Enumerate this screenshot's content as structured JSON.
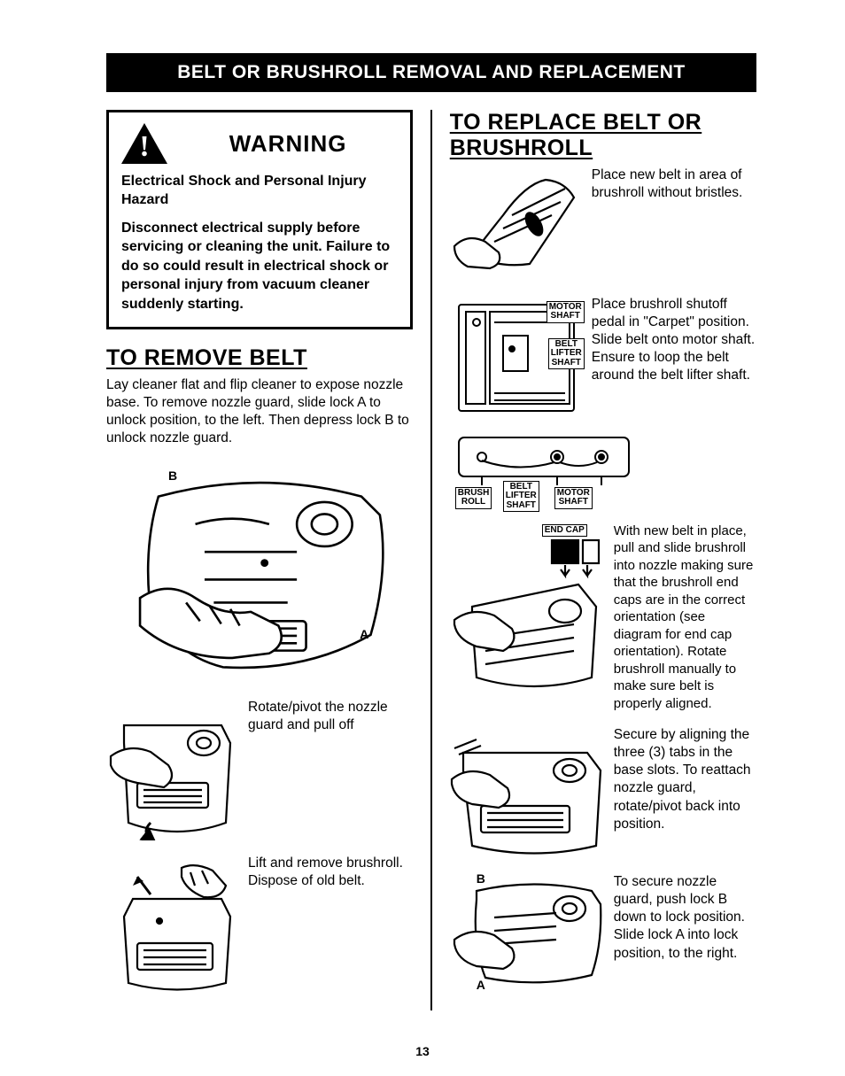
{
  "banner": "BELT OR BRUSHROLL REMOVAL AND REPLACEMENT",
  "warning": {
    "title": "WARNING",
    "subtitle": "Electrical Shock and Personal Injury Hazard",
    "body": "Disconnect electrical supply before servicing or cleaning the unit. Failure to do so could result in electrical shock or personal injury from vacuum cleaner suddenly starting."
  },
  "remove": {
    "title": "TO REMOVE BELT",
    "intro": "Lay cleaner flat and flip cleaner to expose nozzle base. To remove nozzle guard, slide lock A to unlock position, to the left. Then depress lock B to unlock nozzle guard.",
    "fig1_labels": {
      "B": "B",
      "A": "A"
    },
    "step2": "Rotate/pivot the nozzle guard and pull off",
    "step3": "Lift and remove brushroll. Dispose of old belt."
  },
  "replace": {
    "title": "TO REPLACE BELT OR BRUSHROLL",
    "step1": "Place new belt in area of brushroll without bristles.",
    "step2": "Place brushroll shutoff pedal in \"Carpet\" position. Slide belt onto motor shaft. Ensure to loop the belt around the belt lifter shaft.",
    "step2_labels": {
      "motor_shaft": "MOTOR\nSHAFT",
      "belt_lifter_shaft": "BELT\nLIFTER\nSHAFT"
    },
    "step3_labels": {
      "brush_roll": "BRUSH\nROLL",
      "belt_lifter_shaft": "BELT\nLIFTER\nSHAFT",
      "motor_shaft": "MOTOR\nSHAFT"
    },
    "step4_label": "END CAP",
    "step4": "With new belt in place, pull and slide brushroll into nozzle making sure that the brushroll end caps are in the correct orientation (see diagram for end cap orientation). Rotate brushroll manually to make sure belt is properly aligned.",
    "step5": "Secure by aligning the three (3) tabs in the base slots. To reattach nozzle guard, rotate/pivot back into position.",
    "step6": "To secure nozzle guard, push lock B down to lock position. Slide lock A into lock position, to the right.",
    "step6_labels": {
      "B": "B",
      "A": "A"
    }
  },
  "page": "13",
  "colors": {
    "bg": "#ffffff",
    "ink": "#000000"
  }
}
